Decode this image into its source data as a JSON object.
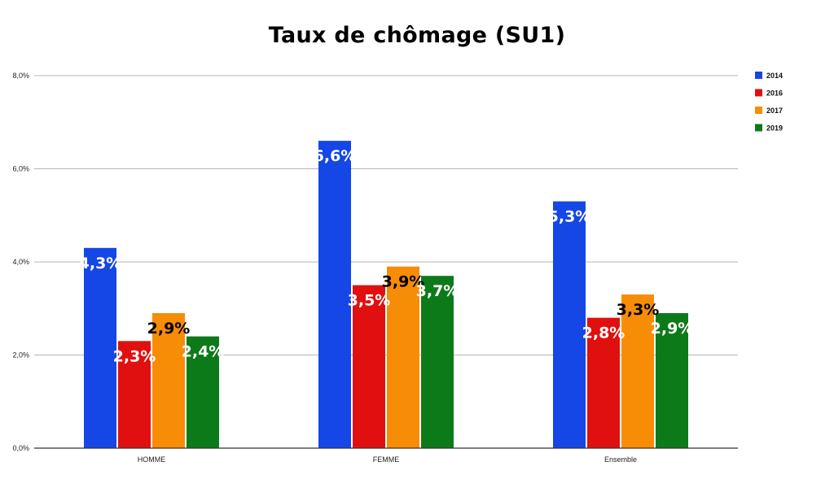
{
  "chart_data": {
    "type": "bar",
    "title": "Taux de chômage (SU1)",
    "categories": [
      "HOMME",
      "FEMME",
      "Ensemble"
    ],
    "series": [
      {
        "name": "2014",
        "color": "#1546e6",
        "label_color": "#ffffff",
        "values": [
          4.3,
          6.6,
          5.3
        ],
        "labels": [
          "4,3%",
          "6,6%",
          "5,3%"
        ]
      },
      {
        "name": "2016",
        "color": "#e01010",
        "label_color": "#ffffff",
        "values": [
          2.3,
          3.5,
          2.8
        ],
        "labels": [
          "2,3%",
          "3,5%",
          "2,8%"
        ]
      },
      {
        "name": "2017",
        "color": "#f78c06",
        "label_color": "#000000",
        "values": [
          2.9,
          3.9,
          3.3
        ],
        "labels": [
          "2,9%",
          "3,9%",
          "3,3%"
        ]
      },
      {
        "name": "2019",
        "color": "#0d7a1a",
        "label_color": "#ffffff",
        "values": [
          2.4,
          3.7,
          2.9
        ],
        "labels": [
          "2,4%",
          "3,7%",
          "2,9%"
        ]
      }
    ],
    "ylim": [
      0,
      8
    ],
    "yticks": [
      0,
      2,
      4,
      6,
      8
    ],
    "ytick_labels": [
      "0,0%",
      "2,0%",
      "4,0%",
      "6,0%",
      "8,0%"
    ],
    "grid": true,
    "legend_position": "top-right",
    "xlabel": "",
    "ylabel": ""
  }
}
